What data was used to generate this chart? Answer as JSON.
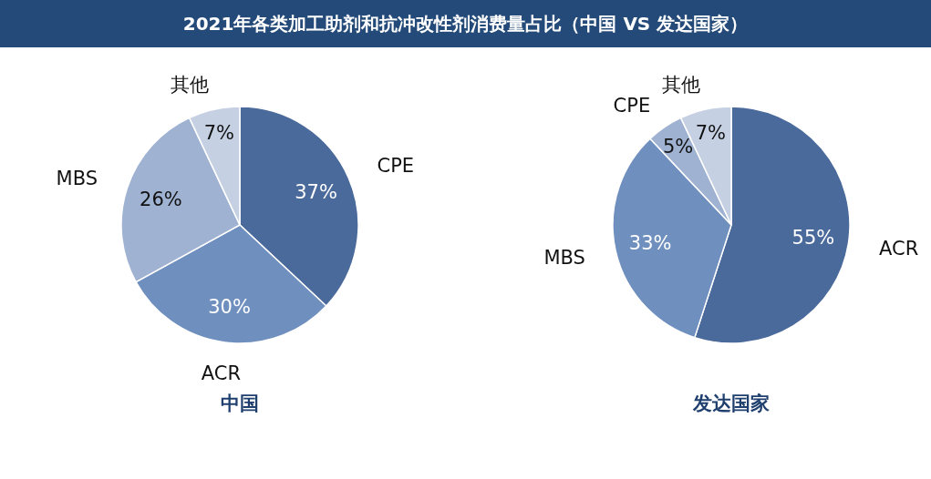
{
  "chart_data": [
    {
      "type": "other",
      "title": "2021年各类加工助剂和抗冲改性剂消费量占比（中国 VS 发达国家）"
    },
    {
      "type": "pie",
      "title": "中国",
      "categories": [
        "CPE",
        "ACR",
        "MBS",
        "其他"
      ],
      "values": [
        37,
        30,
        26,
        7
      ],
      "value_labels": [
        "37%",
        "30%",
        "26%",
        "7%"
      ],
      "colors": [
        "#4a6a9b",
        "#6f8fbf",
        "#9fb2d2",
        "#c5d0e3"
      ]
    },
    {
      "type": "pie",
      "title": "发达国家",
      "categories": [
        "ACR",
        "MBS",
        "CPE",
        "其他"
      ],
      "values": [
        55,
        33,
        5,
        7
      ],
      "value_labels": [
        "55%",
        "33%",
        "5%",
        "7%"
      ],
      "colors": [
        "#4a6a9b",
        "#6f8fbf",
        "#9fb2d2",
        "#c5d0e3"
      ]
    }
  ]
}
